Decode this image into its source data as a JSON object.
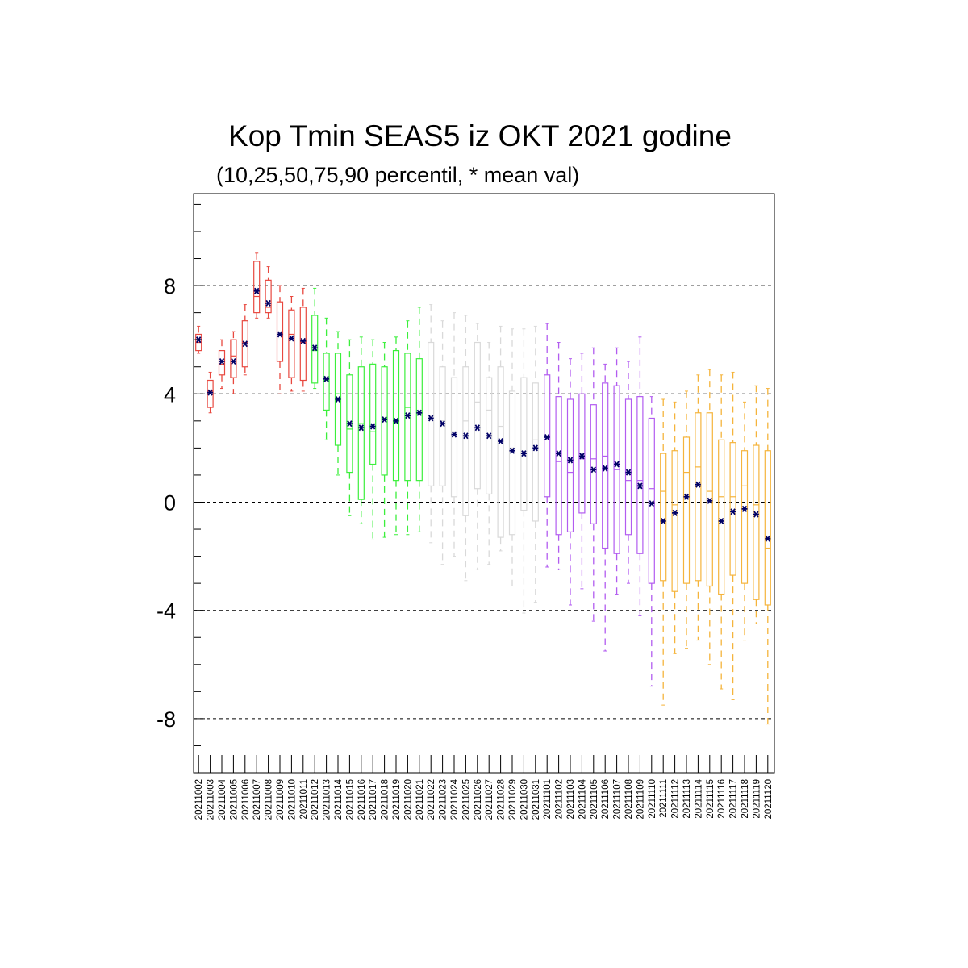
{
  "chart_data": {
    "type": "box",
    "title": "Kop Tmin SEAS5 iz OKT 2021 godine",
    "subtitle": "(10,25,50,75,90 percentil, * mean val)",
    "ylim": [
      -10,
      11.4
    ],
    "yticks": [
      -8,
      -4,
      0,
      4,
      8
    ],
    "grid": "dashed horizontal at labeled ticks",
    "colors": {
      "red": "#e8483f",
      "green": "#3cef3c",
      "gray": "#d9d9d9",
      "purple": "#b25cf0",
      "orange": "#f5b43c",
      "mean": "#000066"
    },
    "categories": [
      "20211002",
      "20211003",
      "20211004",
      "20211005",
      "20211006",
      "20211007",
      "20211008",
      "20211009",
      "20211010",
      "20211011",
      "20211012",
      "20211013",
      "20211014",
      "20211015",
      "20211016",
      "20211017",
      "20211018",
      "20211019",
      "20211020",
      "20211021",
      "20211022",
      "20211023",
      "20211024",
      "20211025",
      "20211026",
      "20211027",
      "20211028",
      "20211029",
      "20211030",
      "20211031",
      "20211101",
      "20211102",
      "20211103",
      "20211104",
      "20211105",
      "20211106",
      "20211107",
      "20211108",
      "20211109",
      "20211110",
      "20211111",
      "20211112",
      "20211113",
      "20211114",
      "20211115",
      "20211116",
      "20211117",
      "20211118",
      "20211119",
      "20211120"
    ],
    "series_colors": [
      "red",
      "red",
      "red",
      "red",
      "red",
      "red",
      "red",
      "red",
      "red",
      "red",
      "green",
      "green",
      "green",
      "green",
      "green",
      "green",
      "green",
      "green",
      "green",
      "green",
      "gray",
      "gray",
      "gray",
      "gray",
      "gray",
      "gray",
      "gray",
      "gray",
      "gray",
      "gray",
      "purple",
      "purple",
      "purple",
      "purple",
      "purple",
      "purple",
      "purple",
      "purple",
      "purple",
      "purple",
      "orange",
      "orange",
      "orange",
      "orange",
      "orange",
      "orange",
      "orange",
      "orange",
      "orange",
      "orange"
    ],
    "p10": [
      5.5,
      3.3,
      4.2,
      4.0,
      4.7,
      6.8,
      6.8,
      4.0,
      4.1,
      4.1,
      4.2,
      2.3,
      1.0,
      -0.5,
      -0.8,
      -1.4,
      -1.3,
      -1.2,
      -1.2,
      -1.1,
      -1.5,
      -2.3,
      -2.0,
      -2.9,
      -2.5,
      -2.3,
      -1.8,
      -3.1,
      -4.1,
      -3.7,
      -2.4,
      -2.5,
      -3.8,
      -3.2,
      -4.4,
      -5.5,
      -3.4,
      -3.0,
      -4.2,
      -6.8,
      -7.5,
      -5.6,
      -5.4,
      -5.1,
      -6.0,
      -6.9,
      -7.3,
      -5.1,
      -4.5,
      -8.2
    ],
    "p25": [
      5.6,
      3.5,
      4.7,
      4.6,
      5.0,
      7.0,
      7.0,
      5.2,
      4.6,
      4.5,
      4.4,
      3.4,
      2.1,
      1.1,
      0.1,
      1.4,
      1.0,
      0.8,
      0.8,
      0.8,
      0.6,
      0.6,
      0.2,
      -0.5,
      0.5,
      0.3,
      -1.3,
      -1.2,
      -0.3,
      -0.7,
      0.2,
      -1.2,
      -1.1,
      -0.4,
      -0.8,
      -1.7,
      -1.9,
      -1.2,
      -1.9,
      -3.0,
      -2.9,
      -3.3,
      -3.0,
      -2.9,
      -3.1,
      -3.4,
      -2.7,
      -3.0,
      -3.6,
      -3.8
    ],
    "p50": [
      5.9,
      4.1,
      5.1,
      5.4,
      5.9,
      7.6,
      7.2,
      6.2,
      6.2,
      5.9,
      5.6,
      4.5,
      4.0,
      2.7,
      2.9,
      2.6,
      3.1,
      2.9,
      3.5,
      3.3,
      3.2,
      3.0,
      2.6,
      3.0,
      3.7,
      3.4,
      2.8,
      2.0,
      1.8,
      2.3,
      2.3,
      1.5,
      1.1,
      1.6,
      1.6,
      1.7,
      1.2,
      0.8,
      0.8,
      0.5,
      0.4,
      -0.1,
      1.1,
      1.3,
      0.4,
      0.2,
      0.2,
      0.6,
      -0.1,
      -1.7
    ],
    "p75": [
      6.2,
      4.5,
      5.6,
      6.0,
      6.7,
      8.9,
      8.2,
      7.4,
      7.1,
      7.2,
      6.9,
      5.5,
      5.5,
      4.7,
      5.0,
      5.1,
      5.0,
      5.6,
      5.5,
      5.3,
      5.9,
      5.0,
      4.6,
      5.0,
      5.9,
      4.6,
      5.0,
      4.1,
      4.6,
      4.4,
      4.7,
      3.9,
      3.8,
      4.0,
      3.6,
      4.4,
      4.3,
      3.8,
      3.9,
      3.1,
      1.8,
      1.9,
      2.4,
      3.3,
      3.3,
      2.3,
      2.2,
      1.9,
      2.1,
      1.9
    ],
    "p90": [
      6.5,
      4.8,
      6.0,
      6.3,
      7.3,
      9.2,
      8.7,
      8.0,
      7.6,
      7.9,
      7.9,
      6.8,
      6.3,
      6.0,
      6.1,
      6.0,
      5.9,
      6.1,
      6.7,
      7.2,
      7.3,
      6.7,
      7.0,
      6.9,
      6.6,
      5.9,
      6.5,
      6.4,
      6.4,
      6.5,
      6.6,
      5.9,
      5.3,
      5.5,
      5.7,
      5.1,
      5.7,
      5.2,
      6.1,
      3.9,
      3.8,
      3.7,
      4.1,
      4.7,
      4.9,
      4.7,
      4.8,
      3.7,
      4.3,
      4.2
    ],
    "mean": [
      6.0,
      4.05,
      5.2,
      5.2,
      5.85,
      7.8,
      7.35,
      6.2,
      6.05,
      5.95,
      5.7,
      4.55,
      3.8,
      2.9,
      2.75,
      2.8,
      3.05,
      3.0,
      3.2,
      3.3,
      3.1,
      2.9,
      2.5,
      2.45,
      2.75,
      2.45,
      2.25,
      1.9,
      1.8,
      2.0,
      2.4,
      1.8,
      1.55,
      1.7,
      1.2,
      1.25,
      1.4,
      1.1,
      0.6,
      -0.05,
      -0.7,
      -0.4,
      0.2,
      0.65,
      0.05,
      -0.7,
      -0.35,
      -0.25,
      -0.45,
      -1.35
    ]
  }
}
